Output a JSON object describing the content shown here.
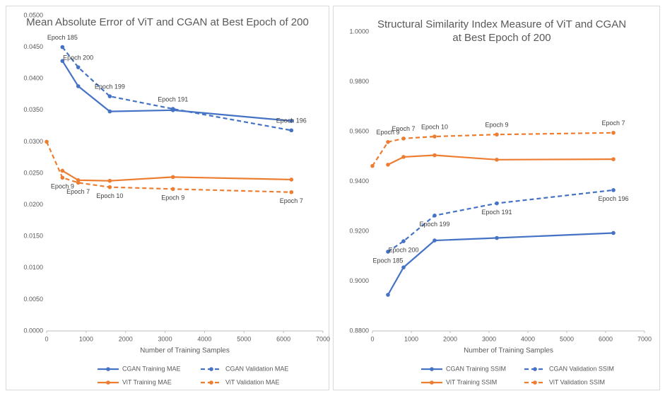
{
  "chart_data": [
    {
      "type": "line",
      "title": "Mean Absolute Error of ViT and CGAN at Best Epoch of 200",
      "xlabel": "Number of Training Samples",
      "xlim": [
        0,
        7000
      ],
      "xticks": [
        0,
        1000,
        2000,
        3000,
        4000,
        5000,
        6000,
        7000
      ],
      "ylim": [
        0,
        0.05
      ],
      "yticks": [
        {
          "value": 0,
          "label": "0.0000"
        },
        {
          "value": 0.005,
          "label": "0.0050"
        },
        {
          "value": 0.01,
          "label": "0.0100"
        },
        {
          "value": 0.015,
          "label": "0.0150"
        },
        {
          "value": 0.02,
          "label": "0.0200"
        },
        {
          "value": 0.025,
          "label": "0.0250"
        },
        {
          "value": 0.03,
          "label": "0.0300"
        },
        {
          "value": 0.035,
          "label": "0.0350"
        },
        {
          "value": 0.04,
          "label": "0.0400"
        },
        {
          "value": 0.045,
          "label": "0.0450"
        },
        {
          "value": 0.05,
          "label": "0.0500"
        }
      ],
      "grid": false,
      "series": [
        {
          "name": "CGAN Training MAE",
          "color": "#4472c4",
          "dashed": false,
          "x": [
            400,
            800,
            1600,
            3200,
            6200
          ],
          "values": [
            0.0428,
            0.0388,
            0.0348,
            0.035,
            0.0333
          ]
        },
        {
          "name": "CGAN Validation MAE",
          "color": "#4472c4",
          "dashed": true,
          "x": [
            400,
            800,
            1600,
            3200,
            6200
          ],
          "values": [
            0.045,
            0.0418,
            0.0372,
            0.0352,
            0.0318
          ],
          "point_labels": [
            "Epoch 185",
            "Epoch 200",
            "Epoch 199",
            "Epoch 191",
            "Epoch 196"
          ]
        },
        {
          "name": "ViT Training MAE",
          "color": "#ed7d31",
          "dashed": false,
          "x": [
            400,
            800,
            1600,
            3200,
            6200
          ],
          "values": [
            0.0254,
            0.0239,
            0.0238,
            0.0244,
            0.024
          ]
        },
        {
          "name": "ViT Validation MAE",
          "color": "#ed7d31",
          "dashed": true,
          "x": [
            0,
            400,
            800,
            1600,
            3200,
            6200
          ],
          "values": [
            0.03,
            0.0243,
            0.0235,
            0.0228,
            0.0225,
            0.022
          ],
          "point_labels": [
            null,
            "Epoch 9",
            "Epoch 7",
            "Epoch 10",
            "Epoch 9",
            "Epoch 7"
          ]
        }
      ]
    },
    {
      "type": "line",
      "title": "Structural Similarity Index Measure of ViT and CGAN at Best Epoch of 200",
      "xlabel": "Number of Training Samples",
      "xlim": [
        0,
        7000
      ],
      "xticks": [
        0,
        1000,
        2000,
        3000,
        4000,
        5000,
        6000,
        7000
      ],
      "ylim": [
        0.88,
        1
      ],
      "yticks": [
        {
          "value": 0.88,
          "label": "0.8800"
        },
        {
          "value": 0.9,
          "label": "0.9000"
        },
        {
          "value": 0.92,
          "label": "0.9200"
        },
        {
          "value": 0.94,
          "label": "0.9400"
        },
        {
          "value": 0.96,
          "label": "0.9600"
        },
        {
          "value": 0.98,
          "label": "0.9800"
        },
        {
          "value": 1,
          "label": "1.0000"
        }
      ],
      "grid": false,
      "series": [
        {
          "name": "CGAN Training SSIM",
          "color": "#4472c4",
          "dashed": false,
          "x": [
            400,
            800,
            1600,
            3200,
            6200
          ],
          "values": [
            0.8945,
            0.9055,
            0.9163,
            0.9173,
            0.9193
          ]
        },
        {
          "name": "CGAN Validation SSIM",
          "color": "#4472c4",
          "dashed": true,
          "x": [
            400,
            800,
            1600,
            3200,
            6200
          ],
          "values": [
            0.9118,
            0.916,
            0.9263,
            0.9312,
            0.9365
          ],
          "point_labels": [
            "Epoch 185",
            "Epoch 200",
            "Epoch 199",
            "Epoch 191",
            "Epoch 196"
          ]
        },
        {
          "name": "ViT Training SSIM",
          "color": "#ed7d31",
          "dashed": false,
          "x": [
            400,
            800,
            1600,
            3200,
            6200
          ],
          "values": [
            0.9467,
            0.9498,
            0.9505,
            0.9487,
            0.9489
          ]
        },
        {
          "name": "ViT Validation SSIM",
          "color": "#ed7d31",
          "dashed": true,
          "x": [
            0,
            400,
            800,
            1600,
            3200,
            6200
          ],
          "values": [
            0.9462,
            0.9558,
            0.9572,
            0.958,
            0.9588,
            0.9595
          ],
          "point_labels": [
            null,
            "Epoch 9",
            "Epoch 7",
            "Epoch 10",
            "Epoch 9",
            "Epoch 7"
          ]
        }
      ]
    }
  ]
}
